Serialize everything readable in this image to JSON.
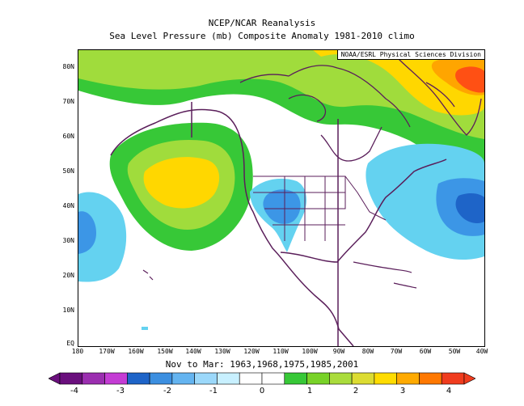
{
  "header": {
    "title": "NCEP/NCAR Reanalysis",
    "subtitle": "Sea Level Pressure (mb) Composite Anomaly 1981-2010 climo"
  },
  "credit": "NOAA/ESRL Physical Sciences Division",
  "footer": {
    "period": "Nov to Mar: 1963,1968,1975,1985,2001"
  },
  "axes": {
    "lat_labels": [
      "80N",
      "70N",
      "60N",
      "50N",
      "40N",
      "30N",
      "20N",
      "10N",
      "EQ"
    ],
    "lon_labels": [
      "180",
      "170W",
      "160W",
      "150W",
      "140W",
      "130W",
      "120W",
      "110W",
      "100W",
      "90W",
      "80W",
      "70W",
      "60W",
      "50W",
      "40W"
    ]
  },
  "colorbar": {
    "labels": [
      "-4",
      "-3",
      "-2",
      "-1",
      "0",
      "1",
      "2",
      "3",
      "4"
    ],
    "colors": [
      "#6a0f7d",
      "#9b2eb0",
      "#c43cd4",
      "#1e64c8",
      "#3c8fe0",
      "#64b4f0",
      "#9bd8fa",
      "#c8f0ff",
      "#ffffff",
      "#ffffff",
      "#37c837",
      "#78d228",
      "#aadc3c",
      "#dcdc32",
      "#ffdc00",
      "#ffaa00",
      "#ff7800",
      "#f03c1e"
    ]
  },
  "anomaly_colors": {
    "neg1": "#64d2f0",
    "neg2": "#3c96e6",
    "neg3": "#1e64c8",
    "pos1": "#37c837",
    "pos2": "#a0dc3c",
    "pos3": "#ffd700",
    "pos4": "#ffa500",
    "pos5": "#ff5014",
    "coast": "#5a1e5a"
  }
}
